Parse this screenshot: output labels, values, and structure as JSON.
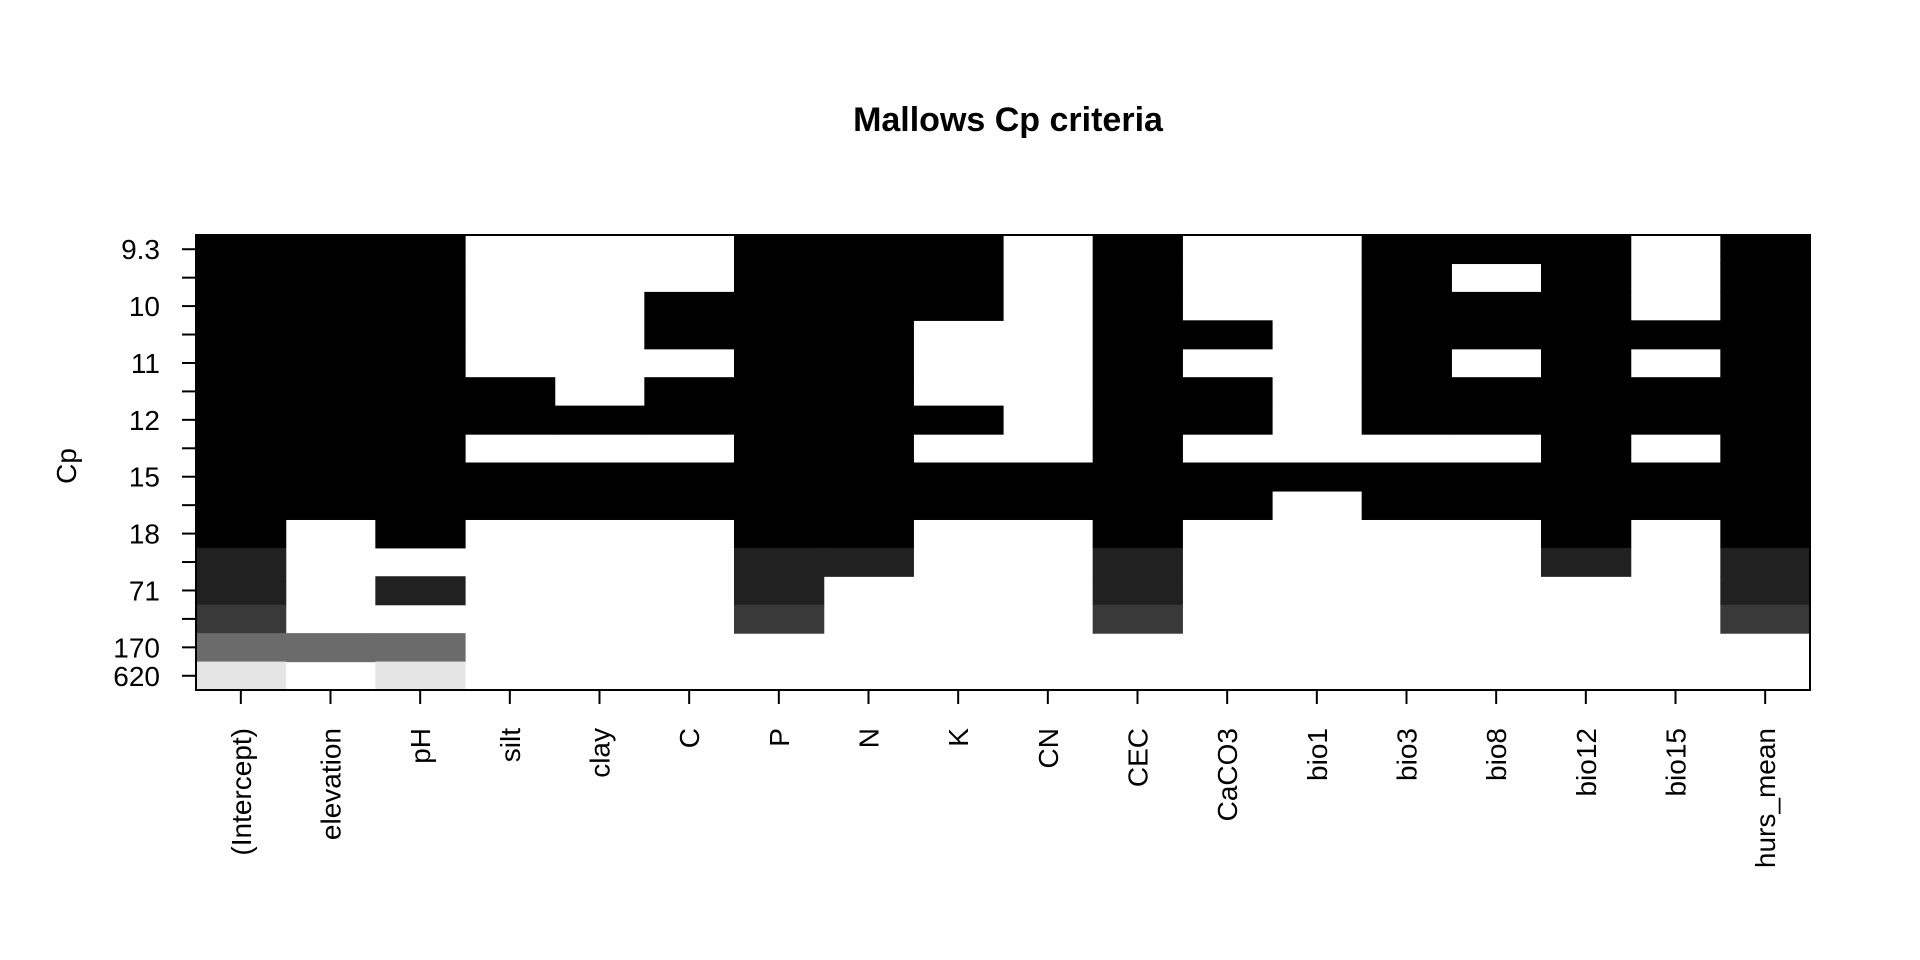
{
  "chart_data": {
    "type": "heatmap",
    "title": "Mallows Cp criteria",
    "ylabel": "Cp",
    "columns": [
      "(Intercept)",
      "elevation",
      "pH",
      "silt",
      "clay",
      "C",
      "P",
      "N",
      "K",
      "CN",
      "CEC",
      "CaCO3",
      "bio1",
      "bio3",
      "bio8",
      "bio12",
      "bio15",
      "hurs_mean"
    ],
    "y_tick_labels": [
      "9.3",
      "10",
      "11",
      "12",
      "15",
      "18",
      "71",
      "170",
      "620"
    ],
    "rows_top_to_bottom": [
      {
        "shade": 0,
        "included": [
          1,
          1,
          1,
          0,
          0,
          0,
          1,
          1,
          1,
          0,
          1,
          0,
          0,
          1,
          1,
          1,
          0,
          1
        ]
      },
      {
        "shade": 0,
        "included": [
          1,
          1,
          1,
          0,
          0,
          0,
          1,
          1,
          1,
          0,
          1,
          0,
          0,
          1,
          0,
          1,
          0,
          1
        ]
      },
      {
        "shade": 0,
        "included": [
          1,
          1,
          1,
          0,
          0,
          1,
          1,
          1,
          1,
          0,
          1,
          0,
          0,
          1,
          1,
          1,
          0,
          1
        ]
      },
      {
        "shade": 0,
        "included": [
          1,
          1,
          1,
          0,
          0,
          1,
          1,
          1,
          0,
          0,
          1,
          1,
          0,
          1,
          1,
          1,
          1,
          1
        ]
      },
      {
        "shade": 0,
        "included": [
          1,
          1,
          1,
          0,
          0,
          0,
          1,
          1,
          0,
          0,
          1,
          0,
          0,
          1,
          0,
          1,
          0,
          1
        ]
      },
      {
        "shade": 0,
        "included": [
          1,
          1,
          1,
          1,
          0,
          1,
          1,
          1,
          0,
          0,
          1,
          1,
          0,
          1,
          1,
          1,
          1,
          1
        ]
      },
      {
        "shade": 0,
        "included": [
          1,
          1,
          1,
          1,
          1,
          1,
          1,
          1,
          1,
          0,
          1,
          1,
          0,
          1,
          1,
          1,
          1,
          1
        ]
      },
      {
        "shade": 0,
        "included": [
          1,
          1,
          1,
          0,
          0,
          0,
          1,
          1,
          0,
          0,
          1,
          0,
          0,
          0,
          0,
          1,
          0,
          1
        ]
      },
      {
        "shade": 0,
        "included": [
          1,
          1,
          1,
          1,
          1,
          1,
          1,
          1,
          1,
          1,
          1,
          1,
          1,
          1,
          1,
          1,
          1,
          1
        ]
      },
      {
        "shade": 0,
        "included": [
          1,
          1,
          1,
          1,
          1,
          1,
          1,
          1,
          1,
          1,
          1,
          1,
          0,
          1,
          1,
          1,
          1,
          1
        ]
      },
      {
        "shade": 0,
        "included": [
          1,
          0,
          1,
          0,
          0,
          0,
          1,
          1,
          0,
          0,
          1,
          0,
          0,
          0,
          0,
          1,
          0,
          1
        ]
      },
      {
        "shade": 33,
        "included": [
          1,
          0,
          0,
          0,
          0,
          0,
          1,
          1,
          0,
          0,
          1,
          0,
          0,
          0,
          0,
          1,
          0,
          1
        ]
      },
      {
        "shade": 33,
        "included": [
          1,
          0,
          1,
          0,
          0,
          0,
          1,
          0,
          0,
          0,
          1,
          0,
          0,
          0,
          0,
          0,
          0,
          1
        ]
      },
      {
        "shade": 57,
        "included": [
          1,
          0,
          0,
          0,
          0,
          0,
          1,
          0,
          0,
          0,
          1,
          0,
          0,
          0,
          0,
          0,
          0,
          1
        ]
      },
      {
        "shade": 107,
        "included": [
          1,
          1,
          1,
          0,
          0,
          0,
          0,
          0,
          0,
          0,
          0,
          0,
          0,
          0,
          0,
          0,
          0,
          0
        ]
      },
      {
        "shade": 229,
        "included": [
          1,
          0,
          1,
          0,
          0,
          0,
          0,
          0,
          0,
          0,
          0,
          0,
          0,
          0,
          0,
          0,
          0,
          0
        ]
      }
    ],
    "grid": false,
    "legend": "none"
  }
}
